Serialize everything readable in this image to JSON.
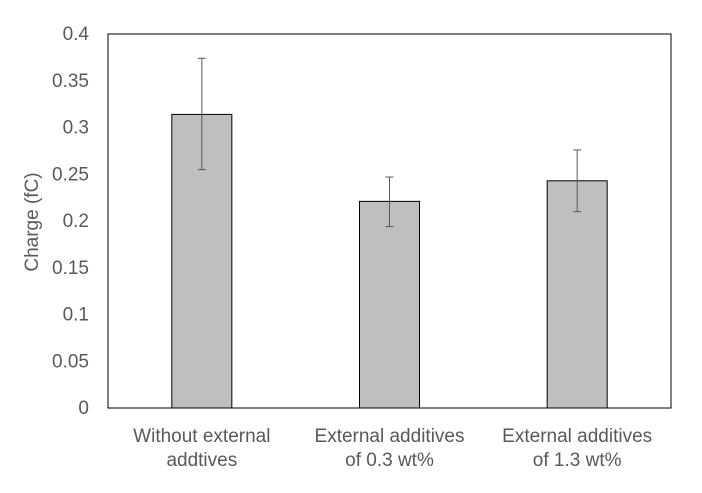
{
  "chart_data": {
    "type": "bar",
    "title": "",
    "xlabel": "",
    "ylabel": "Charge (fC)",
    "categories": [
      [
        "Without external",
        "addtives"
      ],
      [
        "External additives",
        "of 0.3 wt%"
      ],
      [
        "External additives",
        "of 1.3 wt%"
      ]
    ],
    "values": [
      0.314,
      0.221,
      0.243
    ],
    "error_upper": [
      0.374,
      0.247,
      0.276
    ],
    "error_lower": [
      0.255,
      0.194,
      0.21
    ],
    "ylim": [
      0,
      0.4
    ],
    "yticks": [
      "0",
      "0.05",
      "0.1",
      "0.15",
      "0.2",
      "0.25",
      "0.3",
      "0.35",
      "0.4"
    ],
    "grid": false,
    "legend": "none",
    "colors": {
      "bar_fill": "#bfbfbf",
      "bar_stroke": "#000000",
      "error_bar": "#595959",
      "frame": "#000000"
    }
  }
}
